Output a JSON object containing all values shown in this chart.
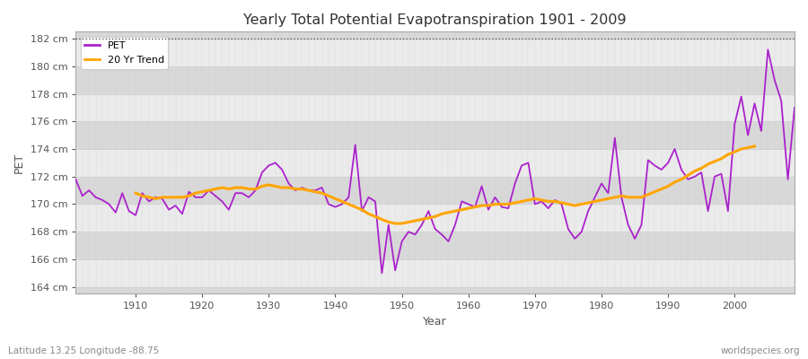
{
  "title": "Yearly Total Potential Evapotranspiration 1901 - 2009",
  "xlabel": "Year",
  "ylabel": "PET",
  "subtitle_left": "Latitude 13.25 Longitude -88.75",
  "subtitle_right": "worldspecies.org",
  "ylim": [
    163.5,
    182.5
  ],
  "yticks": [
    164,
    166,
    168,
    170,
    172,
    174,
    176,
    178,
    180,
    182
  ],
  "ytick_labels": [
    "164 cm",
    "166 cm",
    "168 cm",
    "170 cm",
    "172 cm",
    "174 cm",
    "176 cm",
    "178 cm",
    "180 cm",
    "182 cm"
  ],
  "pet_color": "#aa22cc",
  "trend_color": "#FFA500",
  "bg_color_light": "#ebebeb",
  "bg_color_dark": "#d8d8d8",
  "fig_bg": "#ffffff",
  "years": [
    1901,
    1902,
    1903,
    1904,
    1905,
    1906,
    1907,
    1908,
    1909,
    1910,
    1911,
    1912,
    1913,
    1914,
    1915,
    1916,
    1917,
    1918,
    1919,
    1920,
    1921,
    1922,
    1923,
    1924,
    1925,
    1926,
    1927,
    1928,
    1929,
    1930,
    1931,
    1932,
    1933,
    1934,
    1935,
    1936,
    1937,
    1938,
    1939,
    1940,
    1941,
    1942,
    1943,
    1944,
    1945,
    1946,
    1947,
    1948,
    1949,
    1950,
    1951,
    1952,
    1953,
    1954,
    1955,
    1956,
    1957,
    1958,
    1959,
    1960,
    1961,
    1962,
    1963,
    1964,
    1965,
    1966,
    1967,
    1968,
    1969,
    1970,
    1971,
    1972,
    1973,
    1974,
    1975,
    1976,
    1977,
    1978,
    1979,
    1980,
    1981,
    1982,
    1983,
    1984,
    1985,
    1986,
    1987,
    1988,
    1989,
    1990,
    1991,
    1992,
    1993,
    1994,
    1995,
    1996,
    1997,
    1998,
    1999,
    2000,
    2001,
    2002,
    2003,
    2004,
    2005,
    2006,
    2007,
    2008,
    2009
  ],
  "pet": [
    171.8,
    170.6,
    171.0,
    170.5,
    170.3,
    170.0,
    169.4,
    170.8,
    169.5,
    169.2,
    170.8,
    170.2,
    170.5,
    170.4,
    169.6,
    169.9,
    169.3,
    170.9,
    170.5,
    170.5,
    171.0,
    170.6,
    170.2,
    169.6,
    170.8,
    170.8,
    170.5,
    171.0,
    172.3,
    172.8,
    173.0,
    172.5,
    171.5,
    171.0,
    171.2,
    171.0,
    171.0,
    171.2,
    170.0,
    169.8,
    170.0,
    170.5,
    174.3,
    169.5,
    170.5,
    170.2,
    165.0,
    168.5,
    165.2,
    167.3,
    168.0,
    167.8,
    168.5,
    169.5,
    168.2,
    167.8,
    167.3,
    168.5,
    170.2,
    170.0,
    169.8,
    171.3,
    169.6,
    170.5,
    169.8,
    169.7,
    171.5,
    172.8,
    173.0,
    170.0,
    170.2,
    169.7,
    170.3,
    170.0,
    168.2,
    167.5,
    168.0,
    169.5,
    170.5,
    171.5,
    170.8,
    174.8,
    170.5,
    168.5,
    167.5,
    168.5,
    173.2,
    172.8,
    172.5,
    173.0,
    174.0,
    172.5,
    171.8,
    172.0,
    172.3,
    169.5,
    172.0,
    172.2,
    169.5,
    175.8,
    177.8,
    175.0,
    177.3,
    175.3,
    181.2,
    179.0,
    177.5,
    171.8,
    177.0
  ],
  "trend": [
    null,
    null,
    null,
    null,
    null,
    null,
    null,
    null,
    null,
    170.8,
    170.6,
    170.5,
    170.4,
    170.5,
    170.5,
    170.5,
    170.5,
    170.6,
    170.8,
    170.9,
    171.0,
    171.1,
    171.2,
    171.1,
    171.2,
    171.2,
    171.1,
    171.1,
    171.3,
    171.4,
    171.3,
    171.2,
    171.2,
    171.1,
    171.1,
    171.0,
    170.9,
    170.8,
    170.6,
    170.4,
    170.2,
    170.0,
    169.8,
    169.6,
    169.3,
    169.1,
    168.9,
    168.7,
    168.6,
    168.6,
    168.7,
    168.8,
    168.9,
    169.0,
    169.1,
    169.3,
    169.4,
    169.5,
    169.6,
    169.7,
    169.8,
    169.9,
    169.9,
    170.0,
    170.0,
    170.0,
    170.1,
    170.2,
    170.3,
    170.4,
    170.3,
    170.2,
    170.2,
    170.1,
    170.0,
    169.9,
    170.0,
    170.1,
    170.2,
    170.3,
    170.4,
    170.5,
    170.6,
    170.5,
    170.5,
    170.5,
    170.7,
    170.9,
    171.1,
    171.3,
    171.6,
    171.8,
    172.1,
    172.4,
    172.6,
    172.9,
    173.1,
    173.3,
    173.6,
    173.8,
    174.0,
    174.1,
    174.2,
    null,
    null,
    null,
    null,
    null,
    null
  ]
}
